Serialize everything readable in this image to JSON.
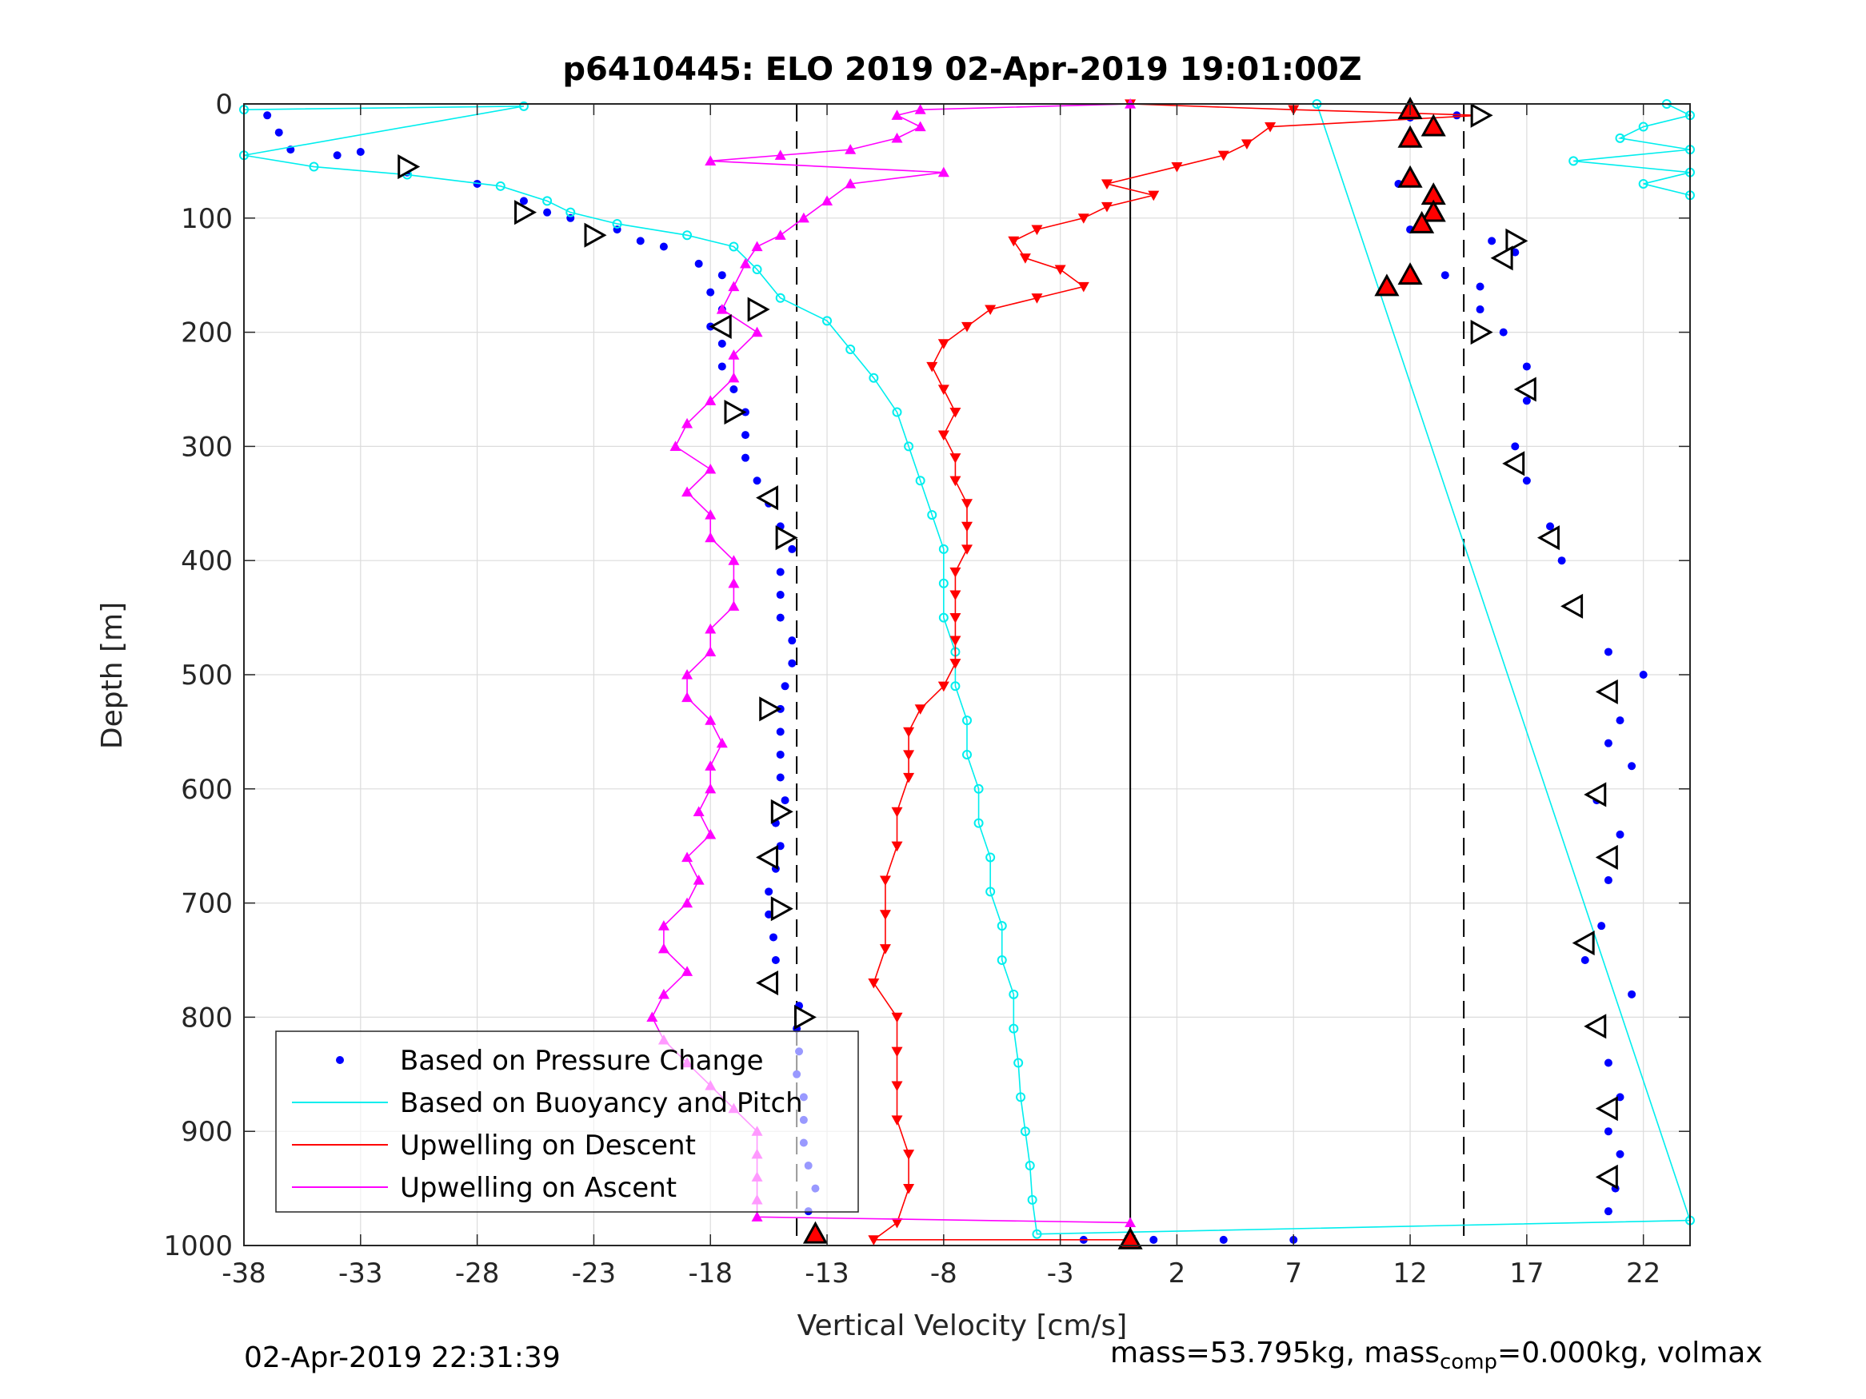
{
  "chart_data": {
    "type": "scatter",
    "title": "p6410445: ELO 2019 02-Apr-2019 19:01:00Z",
    "xlabel": "Vertical Velocity [cm/s]",
    "ylabel": "Depth [m]",
    "xlim": [
      -38,
      24
    ],
    "ylim": [
      0,
      1000
    ],
    "y_reversed": true,
    "grid": true,
    "legend_position": "bottom-left",
    "xticks": [
      "-38",
      "-33",
      "-28",
      "-23",
      "-18",
      "-13",
      "-8",
      "-3",
      "2",
      "7",
      "12",
      "17",
      "22"
    ],
    "yticks": [
      "0",
      "100",
      "200",
      "300",
      "400",
      "500",
      "600",
      "700",
      "800",
      "900",
      "1000"
    ],
    "reference_lines": [
      {
        "x": -14.3,
        "style": "dashed"
      },
      {
        "x": 0,
        "style": "solid"
      },
      {
        "x": 14.3,
        "style": "dashed"
      }
    ],
    "series": [
      {
        "name": "Based on Pressure Change",
        "color": "#0000ff",
        "marker": "dot",
        "points": [
          [
            -37,
            10
          ],
          [
            -36.5,
            25
          ],
          [
            -36,
            40
          ],
          [
            -34,
            45
          ],
          [
            -33,
            42
          ],
          [
            -31,
            60
          ],
          [
            -28,
            70
          ],
          [
            -26,
            85
          ],
          [
            -25,
            95
          ],
          [
            -24,
            100
          ],
          [
            -23,
            115
          ],
          [
            -22,
            110
          ],
          [
            -21,
            120
          ],
          [
            -20,
            125
          ],
          [
            -18.5,
            140
          ],
          [
            -17.5,
            150
          ],
          [
            -18,
            165
          ],
          [
            -17.5,
            180
          ],
          [
            -18,
            195
          ],
          [
            -17.5,
            210
          ],
          [
            -17.5,
            230
          ],
          [
            -17,
            250
          ],
          [
            -16.5,
            270
          ],
          [
            -16.5,
            290
          ],
          [
            -16.5,
            310
          ],
          [
            -16,
            330
          ],
          [
            -15.5,
            350
          ],
          [
            -15,
            370
          ],
          [
            -14.5,
            390
          ],
          [
            -15,
            410
          ],
          [
            -15,
            430
          ],
          [
            -15,
            450
          ],
          [
            -14.5,
            470
          ],
          [
            -14.5,
            490
          ],
          [
            -14.8,
            510
          ],
          [
            -15,
            530
          ],
          [
            -15,
            550
          ],
          [
            -15,
            570
          ],
          [
            -15,
            590
          ],
          [
            -14.8,
            610
          ],
          [
            -15.2,
            630
          ],
          [
            -15,
            650
          ],
          [
            -15.2,
            670
          ],
          [
            -15.5,
            690
          ],
          [
            -15.5,
            710
          ],
          [
            -15.3,
            730
          ],
          [
            -15.2,
            750
          ],
          [
            -15.3,
            770
          ],
          [
            -14.2,
            790
          ],
          [
            -14.3,
            810
          ],
          [
            -14.2,
            830
          ],
          [
            -14.3,
            850
          ],
          [
            -14,
            870
          ],
          [
            -14,
            890
          ],
          [
            -14,
            910
          ],
          [
            -13.8,
            930
          ],
          [
            -13.5,
            950
          ],
          [
            -13.8,
            970
          ],
          [
            -13.5,
            990
          ],
          [
            -2,
            995
          ],
          [
            1,
            995
          ],
          [
            4,
            995
          ],
          [
            7,
            995
          ],
          [
            12,
            12
          ],
          [
            14,
            10
          ],
          [
            12,
            30
          ],
          [
            11.5,
            70
          ],
          [
            12,
            110
          ],
          [
            11,
            160
          ],
          [
            13.5,
            150
          ],
          [
            15,
            160
          ],
          [
            15.5,
            120
          ],
          [
            16.5,
            130
          ],
          [
            15,
            180
          ],
          [
            16,
            200
          ],
          [
            17,
            230
          ],
          [
            17,
            260
          ],
          [
            16.5,
            300
          ],
          [
            17,
            330
          ],
          [
            18,
            370
          ],
          [
            18.5,
            400
          ],
          [
            19,
            440
          ],
          [
            20.5,
            480
          ],
          [
            22,
            500
          ],
          [
            21,
            540
          ],
          [
            20.5,
            560
          ],
          [
            21.5,
            580
          ],
          [
            20,
            610
          ],
          [
            21,
            640
          ],
          [
            20.5,
            680
          ],
          [
            20.2,
            720
          ],
          [
            19.5,
            750
          ],
          [
            21.5,
            780
          ],
          [
            20,
            810
          ],
          [
            20.5,
            840
          ],
          [
            21,
            870
          ],
          [
            20.5,
            900
          ],
          [
            21,
            920
          ],
          [
            20.8,
            950
          ],
          [
            20.5,
            970
          ]
        ]
      },
      {
        "name": "Based on Buoyancy and Pitch",
        "color": "#00eeee",
        "marker": "circle",
        "points": [
          [
            -38,
            5
          ],
          [
            -26,
            2
          ],
          [
            -38,
            45
          ],
          [
            -35,
            55
          ],
          [
            -31,
            62
          ],
          [
            -27,
            72
          ],
          [
            -25,
            85
          ],
          [
            -24,
            95
          ],
          [
            -22,
            105
          ],
          [
            -19,
            115
          ],
          [
            -17,
            125
          ],
          [
            -16,
            145
          ],
          [
            -15,
            170
          ],
          [
            -13,
            190
          ],
          [
            -12,
            215
          ],
          [
            -11,
            240
          ],
          [
            -10,
            270
          ],
          [
            -9.5,
            300
          ],
          [
            -9,
            330
          ],
          [
            -8.5,
            360
          ],
          [
            -8,
            390
          ],
          [
            -8,
            420
          ],
          [
            -8,
            450
          ],
          [
            -7.5,
            480
          ],
          [
            -7.5,
            510
          ],
          [
            -7,
            540
          ],
          [
            -7,
            570
          ],
          [
            -6.5,
            600
          ],
          [
            -6.5,
            630
          ],
          [
            -6,
            660
          ],
          [
            -6,
            690
          ],
          [
            -5.5,
            720
          ],
          [
            -5.5,
            750
          ],
          [
            -5,
            780
          ],
          [
            -5,
            810
          ],
          [
            -4.8,
            840
          ],
          [
            -4.7,
            870
          ],
          [
            -4.5,
            900
          ],
          [
            -4.3,
            930
          ],
          [
            -4.2,
            960
          ],
          [
            -4,
            990
          ],
          [
            24,
            978
          ],
          [
            8,
            0
          ],
          [
            23,
            0
          ],
          [
            24,
            10
          ],
          [
            22,
            20
          ],
          [
            21,
            30
          ],
          [
            24,
            40
          ],
          [
            19,
            50
          ],
          [
            24,
            60
          ],
          [
            22,
            70
          ],
          [
            24,
            80
          ]
        ]
      },
      {
        "name": "Upwelling on Descent",
        "color": "#ff0000",
        "marker": "triangle-down",
        "points": [
          [
            0,
            0
          ],
          [
            7,
            5
          ],
          [
            15,
            10
          ],
          [
            6,
            20
          ],
          [
            5,
            35
          ],
          [
            4,
            45
          ],
          [
            2,
            55
          ],
          [
            -1,
            70
          ],
          [
            1,
            80
          ],
          [
            -1,
            90
          ],
          [
            -2,
            100
          ],
          [
            -4,
            110
          ],
          [
            -5,
            120
          ],
          [
            -4.5,
            135
          ],
          [
            -3,
            145
          ],
          [
            -2,
            160
          ],
          [
            -4,
            170
          ],
          [
            -6,
            180
          ],
          [
            -7,
            195
          ],
          [
            -8,
            210
          ],
          [
            -8.5,
            230
          ],
          [
            -8,
            250
          ],
          [
            -7.5,
            270
          ],
          [
            -8,
            290
          ],
          [
            -7.5,
            310
          ],
          [
            -7.5,
            330
          ],
          [
            -7,
            350
          ],
          [
            -7,
            370
          ],
          [
            -7,
            390
          ],
          [
            -7.5,
            410
          ],
          [
            -7.5,
            430
          ],
          [
            -7.5,
            450
          ],
          [
            -7.5,
            470
          ],
          [
            -7.5,
            490
          ],
          [
            -8,
            510
          ],
          [
            -9,
            530
          ],
          [
            -9.5,
            550
          ],
          [
            -9.5,
            570
          ],
          [
            -9.5,
            590
          ],
          [
            -10,
            620
          ],
          [
            -10,
            650
          ],
          [
            -10.5,
            680
          ],
          [
            -10.5,
            710
          ],
          [
            -10.5,
            740
          ],
          [
            -11,
            770
          ],
          [
            -10,
            800
          ],
          [
            -10,
            830
          ],
          [
            -10,
            860
          ],
          [
            -10,
            890
          ],
          [
            -9.5,
            920
          ],
          [
            -9.5,
            950
          ],
          [
            -10,
            980
          ],
          [
            -11,
            995
          ],
          [
            0,
            995
          ]
        ]
      },
      {
        "name": "Upwelling on Ascent",
        "color": "#ff00ff",
        "marker": "triangle-up",
        "points": [
          [
            0,
            0
          ],
          [
            -9,
            5
          ],
          [
            -10,
            10
          ],
          [
            -9,
            20
          ],
          [
            -10,
            30
          ],
          [
            -12,
            40
          ],
          [
            -15,
            45
          ],
          [
            -18,
            50
          ],
          [
            -8,
            60
          ],
          [
            -12,
            70
          ],
          [
            -13,
            85
          ],
          [
            -14,
            100
          ],
          [
            -15,
            115
          ],
          [
            -16,
            125
          ],
          [
            -16.5,
            140
          ],
          [
            -17,
            160
          ],
          [
            -17.5,
            180
          ],
          [
            -16,
            200
          ],
          [
            -17,
            220
          ],
          [
            -17,
            240
          ],
          [
            -18,
            260
          ],
          [
            -19,
            280
          ],
          [
            -19.5,
            300
          ],
          [
            -18,
            320
          ],
          [
            -19,
            340
          ],
          [
            -18,
            360
          ],
          [
            -18,
            380
          ],
          [
            -17,
            400
          ],
          [
            -17,
            420
          ],
          [
            -17,
            440
          ],
          [
            -18,
            460
          ],
          [
            -18,
            480
          ],
          [
            -19,
            500
          ],
          [
            -19,
            520
          ],
          [
            -18,
            540
          ],
          [
            -17.5,
            560
          ],
          [
            -18,
            580
          ],
          [
            -18,
            600
          ],
          [
            -18.5,
            620
          ],
          [
            -18,
            640
          ],
          [
            -19,
            660
          ],
          [
            -18.5,
            680
          ],
          [
            -19,
            700
          ],
          [
            -20,
            720
          ],
          [
            -20,
            740
          ],
          [
            -19,
            760
          ],
          [
            -20,
            780
          ],
          [
            -20.5,
            800
          ],
          [
            -20,
            820
          ],
          [
            -19,
            840
          ],
          [
            -18,
            860
          ],
          [
            -17,
            880
          ],
          [
            -16,
            900
          ],
          [
            -16,
            920
          ],
          [
            -16,
            940
          ],
          [
            -16,
            960
          ],
          [
            -16,
            975
          ],
          [
            0,
            980
          ]
        ]
      }
    ],
    "markers": [
      {
        "color": "#ffffff",
        "shape": "triangle-right",
        "points": [
          [
            -31,
            55
          ],
          [
            -26,
            95
          ],
          [
            -23,
            115
          ],
          [
            -16,
            180
          ],
          [
            -17,
            270
          ],
          [
            -15.5,
            530
          ],
          [
            -14.8,
            380
          ],
          [
            -15,
            620
          ],
          [
            -15,
            705
          ],
          [
            -14,
            800
          ],
          [
            15,
            10
          ],
          [
            16.5,
            120
          ],
          [
            15,
            200
          ]
        ]
      },
      {
        "color": "#ffffff",
        "shape": "triangle-left",
        "points": [
          [
            -17.5,
            195
          ],
          [
            -15.5,
            345
          ],
          [
            -15.5,
            660
          ],
          [
            -15.5,
            770
          ],
          [
            16,
            135
          ],
          [
            17,
            250
          ],
          [
            16.5,
            315
          ],
          [
            18,
            380
          ],
          [
            19,
            440
          ],
          [
            20.5,
            515
          ],
          [
            20,
            605
          ],
          [
            20.5,
            660
          ],
          [
            19.5,
            735
          ],
          [
            20,
            808
          ],
          [
            20.5,
            880
          ],
          [
            20.5,
            940
          ]
        ]
      },
      {
        "color": "#ff0000",
        "shape": "triangle-up",
        "points": [
          [
            12,
            5
          ],
          [
            13,
            20
          ],
          [
            12,
            30
          ],
          [
            12,
            65
          ],
          [
            13,
            80
          ],
          [
            13,
            95
          ],
          [
            12.5,
            105
          ],
          [
            12,
            150
          ],
          [
            11,
            160
          ],
          [
            -13.5,
            990
          ],
          [
            0,
            995
          ]
        ]
      }
    ],
    "footer_left": "02-Apr-2019 22:31:39",
    "footer_right_prefix": "mass=53.795kg, mass",
    "footer_right_sub": "comp",
    "footer_right_suffix": "=0.000kg, volmax"
  }
}
